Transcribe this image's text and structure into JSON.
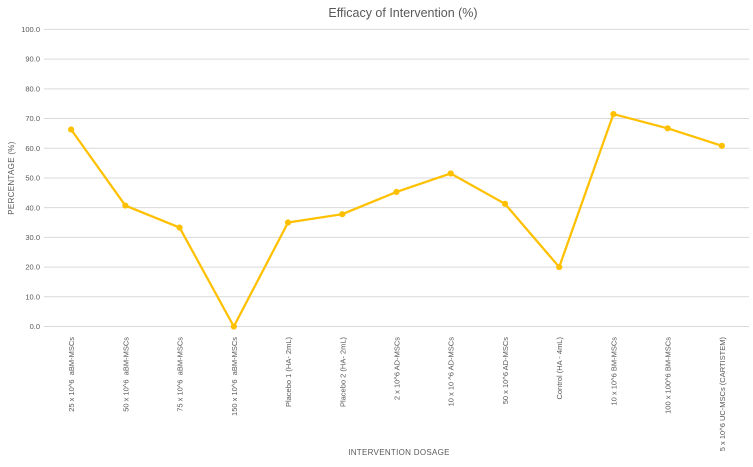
{
  "page": {
    "background": "#ffffff"
  },
  "colors": {
    "series": "#FFC000",
    "grid": "#D9D9D9",
    "text": "#595959"
  },
  "chart_data": {
    "type": "line",
    "title": "Efficacy of Intervention (%)",
    "xlabel": "INTERVENTION DOSAGE",
    "ylabel": "PERCENTAGE (%)",
    "categories": [
      "25 x 10^6  aBM-MSCs",
      "50 x 10^6  aBM-MSCs",
      "75 x 10^6  aBM-MSCs",
      "150 x 10^6  aBM-MSCs",
      "Placebo 1 (HA- 2mL)",
      "Placebo 2 (HA- 2mL)",
      "2 x 10^6 AD-MSCs",
      "10 x 10 ^6 AD-MSCs",
      "50 x 10^6 AD-MSCs",
      "Control (HA - 4mL)",
      "10 x 10^6 BM-MSCs",
      "100 x 100^6 BM-MSCs",
      "5 x 10^6 UC-MSCs (CARTISTEM)"
    ],
    "values": [
      66.3,
      40.7,
      33.3,
      0.0,
      35.0,
      37.8,
      45.3,
      51.5,
      41.3,
      20.0,
      71.5,
      66.7,
      60.8
    ],
    "ylim": [
      0,
      100
    ],
    "ytick_step": 10,
    "ytick_labels": [
      "0.0",
      "10.0",
      "20.0",
      "30.0",
      "40.0",
      "50.0",
      "60.0",
      "70.0",
      "80.0",
      "90.0",
      "100.0"
    ],
    "grid": true,
    "legend": false,
    "marker": "circle"
  }
}
